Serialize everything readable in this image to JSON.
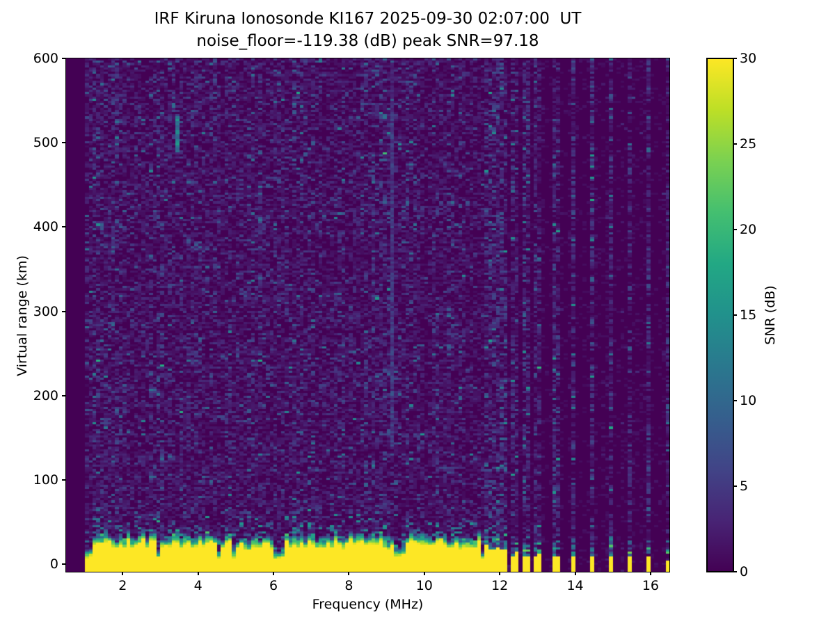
{
  "chart_data": {
    "type": "heatmap",
    "title": "IRF Kiruna Ionosonde KI167 2025-09-30 02:07:00  UT",
    "subtitle": "noise_floor=-119.38 (dB) peak SNR=97.18",
    "station": "KI167",
    "network": "IRF Kiruna Ionosonde",
    "timestamp_ut": "2025-09-30 02:07:00",
    "noise_floor_db": -119.38,
    "peak_snr_db": 97.18,
    "xlabel": "Frequency (MHz)",
    "ylabel": "Virtual range (km)",
    "xlim": [
      0.5,
      16.5
    ],
    "ylim": [
      -9,
      600
    ],
    "x_ticks": [
      2,
      4,
      6,
      8,
      10,
      12,
      14,
      16
    ],
    "y_ticks": [
      0,
      100,
      200,
      300,
      400,
      500,
      600
    ],
    "grid": false,
    "colorbar": {
      "label": "SNR (dB)",
      "ticks": [
        0,
        5,
        10,
        15,
        20,
        25,
        30
      ],
      "vmin": 0,
      "vmax": 30,
      "colormap": "viridis",
      "position": "right",
      "stops": [
        [
          0.0,
          "#440154"
        ],
        [
          0.1,
          "#482475"
        ],
        [
          0.2,
          "#414487"
        ],
        [
          0.3,
          "#355f8d"
        ],
        [
          0.4,
          "#2a788e"
        ],
        [
          0.5,
          "#21918c"
        ],
        [
          0.6,
          "#22a884"
        ],
        [
          0.7,
          "#44bf70"
        ],
        [
          0.8,
          "#7ad151"
        ],
        [
          0.9,
          "#bddf26"
        ],
        [
          1.0,
          "#fde725"
        ]
      ]
    },
    "features": {
      "no_data_below_mhz": 1.0,
      "noise_speckle_mean_db": 1.9,
      "quiet_above_mhz": 11.6,
      "quiet_noise_mean_db": 0.45,
      "rfi_column_noise_mean_db": 2.6,
      "ground_clutter_band": {
        "freq_mhz": [
          1.0,
          11.58
        ],
        "top_km_range": [
          5,
          30
        ],
        "snr_db": 30
      },
      "rfi_stripes_mhz": [
        11.67,
        11.8,
        11.93,
        12.06,
        12.19,
        12.33,
        12.47,
        12.61,
        12.76,
        12.91,
        13.06,
        13.5,
        13.99,
        14.49,
        14.99,
        15.49,
        15.97,
        16.45
      ],
      "vertical_interference": {
        "freq_mhz": 9.2,
        "range_km": [
          140,
          535
        ],
        "snr_db": 6
      },
      "echo_trace": {
        "freq_mhz": 3.45,
        "range_km": [
          488,
          531
        ],
        "snr_db": 14
      }
    }
  }
}
